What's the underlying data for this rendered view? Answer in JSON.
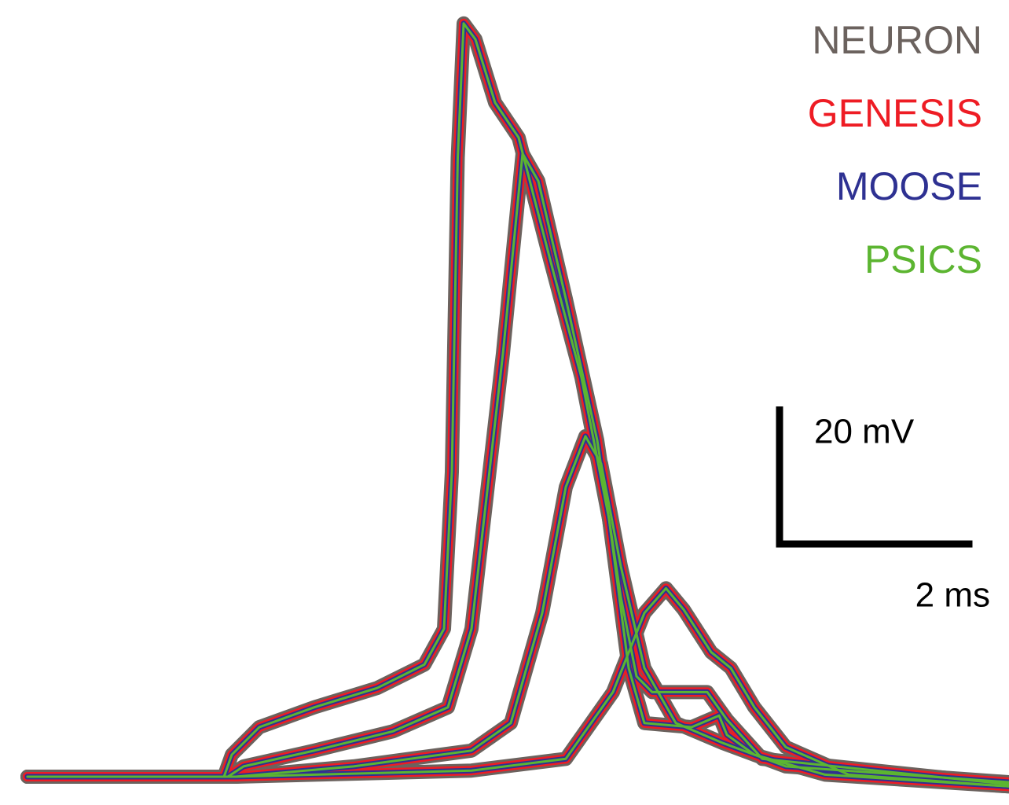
{
  "chart_data": {
    "type": "line",
    "xlim": [
      0,
      10.272
    ],
    "ylim": [
      -4.11,
      112.91
    ],
    "series": [
      {
        "name": "NEURON",
        "color": "#6b625e"
      },
      {
        "name": "GENESIS",
        "color": "#ee1c24"
      },
      {
        "name": "MOOSE",
        "color": "#2e3192"
      },
      {
        "name": "PSICS",
        "color": "#5cb531"
      }
    ],
    "traces": [
      {
        "x": [
          0.28,
          2.28,
          2.36,
          2.64,
          3.2,
          3.84,
          4.32,
          4.52,
          4.6,
          4.66,
          4.72,
          4.84,
          5.04,
          5.28,
          5.6,
          5.92,
          6.2,
          6.4,
          6.56,
          7.04,
          7.32,
          7.4,
          7.68,
          8.4,
          10.27
        ],
        "values": [
          0,
          0,
          3.2,
          7.2,
          10.1,
          12.9,
          16.3,
          21.5,
          44.3,
          90,
          109.5,
          107.2,
          98,
          92.9,
          75.2,
          58,
          37.5,
          15.8,
          7.8,
          7.2,
          8.9,
          6.1,
          3.2,
          0.3,
          -1.4
        ]
      },
      {
        "x": [
          0.28,
          2.32,
          2.48,
          3.2,
          4,
          4.56,
          4.8,
          5.12,
          5.32,
          5.48,
          5.76,
          6.08,
          6.32,
          6.48,
          6.64,
          7.2,
          7.4,
          7.76,
          10.27
        ],
        "values": [
          0,
          0,
          1.5,
          3.8,
          6.6,
          10.1,
          21.5,
          61.5,
          90.6,
          86.6,
          69.5,
          48.9,
          26.1,
          14.6,
          12.3,
          12.3,
          8.3,
          2.6,
          -1.1
        ]
      },
      {
        "x": [
          0.28,
          2.4,
          3.6,
          4.8,
          5.2,
          5.52,
          5.76,
          5.96,
          6.12,
          6.32,
          6.56,
          6.88,
          7.36,
          8,
          10.27
        ],
        "values": [
          0,
          0,
          1.5,
          3.8,
          7.8,
          23.8,
          42.1,
          49.5,
          45.5,
          30.6,
          15.8,
          7.8,
          4.9,
          1.5,
          -0.8
        ]
      },
      {
        "x": [
          0.28,
          2.4,
          4.8,
          5.76,
          6.24,
          6.56,
          6.78,
          6.96,
          7.24,
          7.44,
          7.68,
          8,
          8.64,
          10.27
        ],
        "values": [
          0,
          0,
          0.9,
          2.6,
          12.3,
          23.8,
          27.4,
          24.3,
          18.1,
          15.8,
          10.1,
          4.3,
          0.3,
          -1.4
        ]
      }
    ],
    "scalebar": {
      "x_length": 2,
      "x_label": "2 ms",
      "y_length": 20,
      "y_label": "20 mV"
    }
  }
}
